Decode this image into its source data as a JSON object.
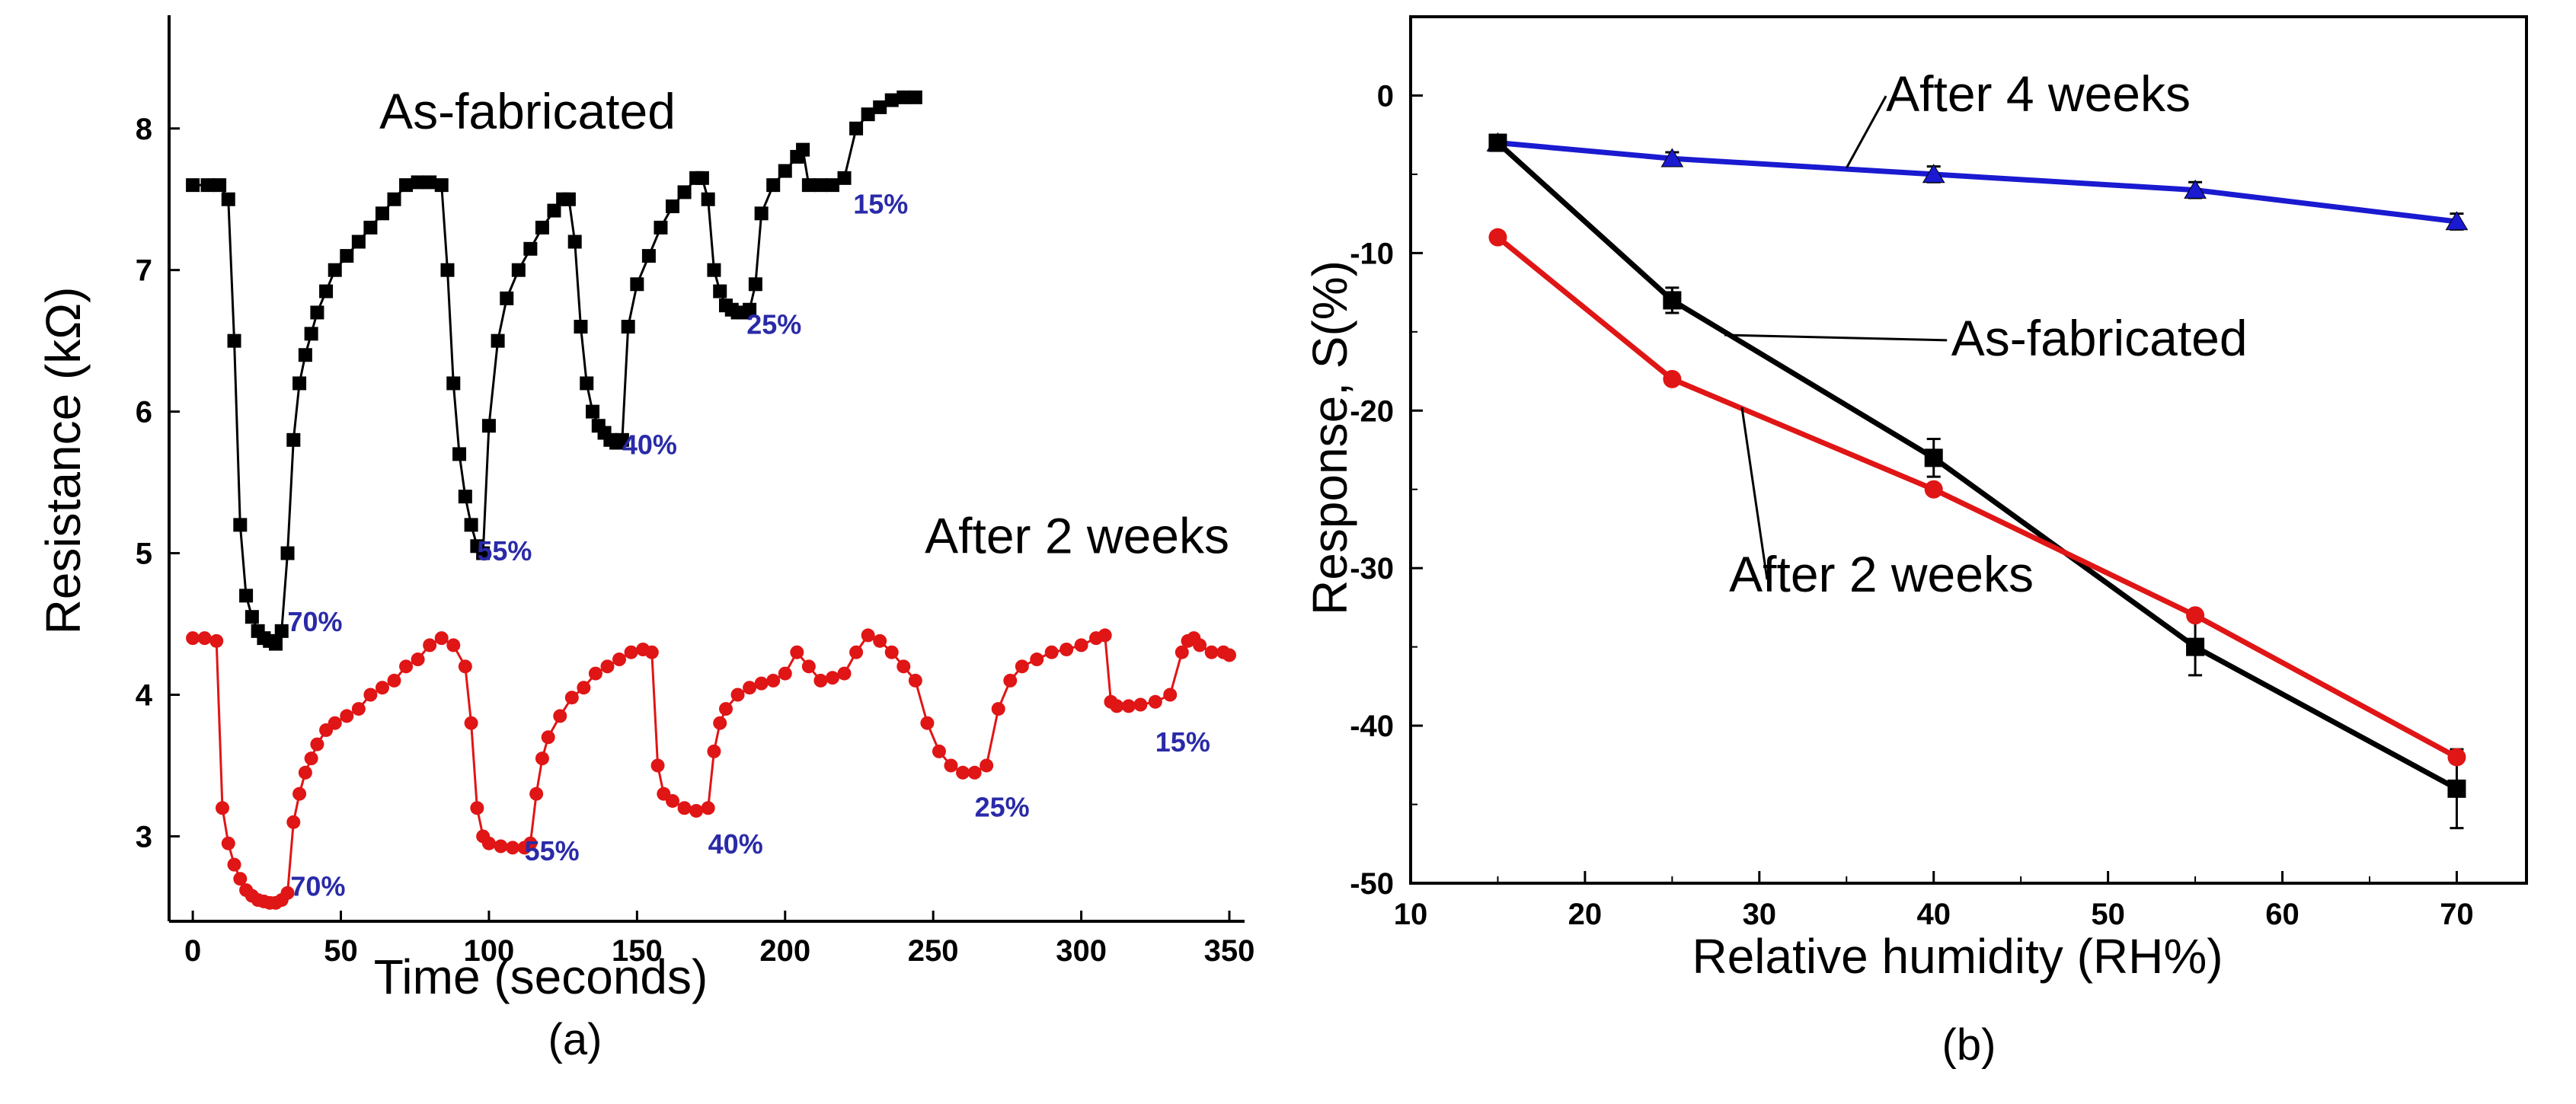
{
  "chart_data": [
    {
      "panel": "(a)",
      "type": "line",
      "title": "",
      "xlabel": "Time (seconds)",
      "ylabel": "Resistance (kΩ)",
      "xlim": [
        -8,
        350
      ],
      "ylim": [
        2.4,
        8.8
      ],
      "xticks": [
        0,
        50,
        100,
        150,
        200,
        250,
        300,
        350
      ],
      "yticks": [
        3,
        4,
        5,
        6,
        7,
        8
      ],
      "series": [
        {
          "name": "As-fabricated",
          "color": "#000000",
          "marker": "square",
          "x": [
            0,
            5,
            9,
            12,
            14,
            16,
            18,
            20,
            22,
            24,
            26,
            28,
            30,
            32,
            34,
            36,
            38,
            40,
            42,
            45,
            48,
            52,
            56,
            60,
            64,
            68,
            72,
            76,
            80,
            84,
            86,
            88,
            90,
            92,
            94,
            96,
            98,
            100,
            103,
            106,
            110,
            114,
            118,
            122,
            125,
            127,
            129,
            131,
            133,
            135,
            137,
            139,
            141,
            143,
            145,
            147,
            150,
            154,
            158,
            162,
            166,
            170,
            172,
            174,
            176,
            178,
            180,
            182,
            184,
            186,
            188,
            190,
            192,
            196,
            200,
            204,
            206,
            208,
            212,
            216,
            220,
            224,
            228,
            232,
            236,
            240,
            244
          ],
          "y": [
            7.6,
            7.6,
            7.6,
            7.5,
            6.5,
            5.2,
            4.7,
            4.55,
            4.45,
            4.4,
            4.38,
            4.36,
            4.45,
            5.0,
            5.8,
            6.2,
            6.4,
            6.55,
            6.7,
            6.85,
            7.0,
            7.1,
            7.2,
            7.3,
            7.4,
            7.5,
            7.6,
            7.62,
            7.62,
            7.6,
            7.0,
            6.2,
            5.7,
            5.4,
            5.2,
            5.05,
            5.0,
            5.9,
            6.5,
            6.8,
            7.0,
            7.15,
            7.3,
            7.42,
            7.5,
            7.5,
            7.2,
            6.6,
            6.2,
            6.0,
            5.9,
            5.85,
            5.8,
            5.78,
            5.8,
            6.6,
            6.9,
            7.1,
            7.3,
            7.45,
            7.55,
            7.65,
            7.65,
            7.5,
            7.0,
            6.85,
            6.75,
            6.72,
            6.7,
            6.7,
            6.72,
            6.9,
            7.4,
            7.6,
            7.7,
            7.8,
            7.85,
            7.6,
            7.6,
            7.6,
            7.65,
            8.0,
            8.1,
            8.15,
            8.2,
            8.22,
            8.22
          ]
        },
        {
          "name": "After 2 weeks",
          "color": "#e01515",
          "marker": "circle",
          "x": [
            0,
            4,
            8,
            10,
            12,
            14,
            16,
            18,
            20,
            22,
            24,
            26,
            28,
            30,
            32,
            34,
            36,
            38,
            40,
            42,
            45,
            48,
            52,
            56,
            60,
            64,
            68,
            72,
            76,
            80,
            84,
            88,
            92,
            94,
            96,
            98,
            100,
            104,
            108,
            112,
            114,
            116,
            118,
            120,
            124,
            128,
            132,
            136,
            140,
            144,
            148,
            152,
            155,
            157,
            159,
            162,
            166,
            170,
            174,
            176,
            178,
            180,
            184,
            188,
            192,
            196,
            200,
            204,
            208,
            212,
            216,
            220,
            224,
            228,
            232,
            236,
            240,
            244,
            248,
            252,
            256,
            260,
            264,
            268,
            272,
            276,
            280,
            285,
            290,
            295,
            300,
            305,
            308,
            310,
            312,
            316,
            320,
            325,
            330,
            334,
            336,
            338,
            340,
            344,
            348,
            350
          ],
          "y": [
            4.4,
            4.4,
            4.38,
            3.2,
            2.95,
            2.8,
            2.7,
            2.62,
            2.58,
            2.55,
            2.54,
            2.53,
            2.53,
            2.55,
            2.6,
            3.1,
            3.3,
            3.45,
            3.55,
            3.65,
            3.75,
            3.8,
            3.85,
            3.9,
            4.0,
            4.05,
            4.1,
            4.2,
            4.25,
            4.35,
            4.4,
            4.35,
            4.2,
            3.8,
            3.2,
            3.0,
            2.95,
            2.93,
            2.92,
            2.92,
            2.95,
            3.3,
            3.55,
            3.7,
            3.85,
            3.98,
            4.05,
            4.15,
            4.2,
            4.25,
            4.3,
            4.32,
            4.3,
            3.5,
            3.3,
            3.25,
            3.2,
            3.18,
            3.2,
            3.6,
            3.8,
            3.9,
            4.0,
            4.05,
            4.08,
            4.1,
            4.15,
            4.3,
            4.2,
            4.1,
            4.12,
            4.15,
            4.3,
            4.42,
            4.38,
            4.3,
            4.2,
            4.1,
            3.8,
            3.6,
            3.5,
            3.45,
            3.45,
            3.5,
            3.9,
            4.1,
            4.2,
            4.25,
            4.3,
            4.32,
            4.35,
            4.4,
            4.42,
            3.95,
            3.92,
            3.92,
            3.93,
            3.95,
            4.0,
            4.3,
            4.38,
            4.4,
            4.35,
            4.3,
            4.3,
            4.28
          ]
        }
      ],
      "annotations": [
        {
          "text": "As-fabricated",
          "x": 63,
          "y": 8.0,
          "kind": "series-label"
        },
        {
          "text": "After 2 weeks",
          "x": 350,
          "y": 5.0,
          "kind": "series-label"
        },
        {
          "text": "70%",
          "x": 32,
          "y": 4.45,
          "kind": "level"
        },
        {
          "text": "55%",
          "x": 96,
          "y": 4.95,
          "kind": "level"
        },
        {
          "text": "40%",
          "x": 145,
          "y": 5.7,
          "kind": "level"
        },
        {
          "text": "25%",
          "x": 187,
          "y": 6.55,
          "kind": "level"
        },
        {
          "text": "15%",
          "x": 223,
          "y": 7.4,
          "kind": "level"
        },
        {
          "text": "70%",
          "x": 33,
          "y": 2.58,
          "kind": "level"
        },
        {
          "text": "55%",
          "x": 112,
          "y": 2.83,
          "kind": "level"
        },
        {
          "text": "40%",
          "x": 174,
          "y": 2.88,
          "kind": "level"
        },
        {
          "text": "25%",
          "x": 264,
          "y": 3.14,
          "kind": "level"
        },
        {
          "text": "15%",
          "x": 325,
          "y": 3.6,
          "kind": "level"
        }
      ]
    },
    {
      "panel": "(b)",
      "type": "line",
      "title": "",
      "xlabel": "Relative humidity (RH%)",
      "ylabel": "Response, S(%)",
      "xlim": [
        10,
        74
      ],
      "ylim": [
        -50,
        5
      ],
      "xticks": [
        10,
        20,
        30,
        40,
        50,
        60,
        70
      ],
      "yticks": [
        0,
        -10,
        -20,
        -30,
        -40,
        -50
      ],
      "series": [
        {
          "name": "After 4 weeks",
          "color": "#1a1ad0",
          "marker": "triangle",
          "x": [
            15,
            25,
            40,
            55,
            70
          ],
          "y": [
            -3,
            -4,
            -5,
            -6,
            -8
          ],
          "error": [
            0.4,
            0.4,
            0.5,
            0.5,
            0.5
          ]
        },
        {
          "name": "As-fabricated",
          "color": "#000000",
          "marker": "square",
          "x": [
            15,
            25,
            40,
            55,
            70
          ],
          "y": [
            -3,
            -13,
            -23,
            -35,
            -44
          ],
          "error": [
            0.5,
            0.8,
            1.2,
            1.8,
            2.5
          ]
        },
        {
          "name": "After 2 weeks",
          "color": "#e01515",
          "marker": "circle",
          "x": [
            15,
            25,
            40,
            55,
            70
          ],
          "y": [
            -9,
            -18,
            -25,
            -33,
            -42
          ],
          "error": [
            0,
            0,
            0,
            0,
            0
          ]
        }
      ],
      "annotations": [
        {
          "text": "After 4 weeks",
          "x": 46,
          "y": -1.0,
          "pointer_to": [
            35,
            -4.6
          ]
        },
        {
          "text": "As-fabricated",
          "x": 49.5,
          "y": -16.5,
          "pointer_to": [
            28,
            -15.2
          ]
        },
        {
          "text": "After 2 weeks",
          "x": 37,
          "y": -31.5,
          "pointer_to": [
            29,
            -19.8
          ]
        }
      ]
    }
  ],
  "panel_labels": [
    "(a)",
    "(b)"
  ]
}
